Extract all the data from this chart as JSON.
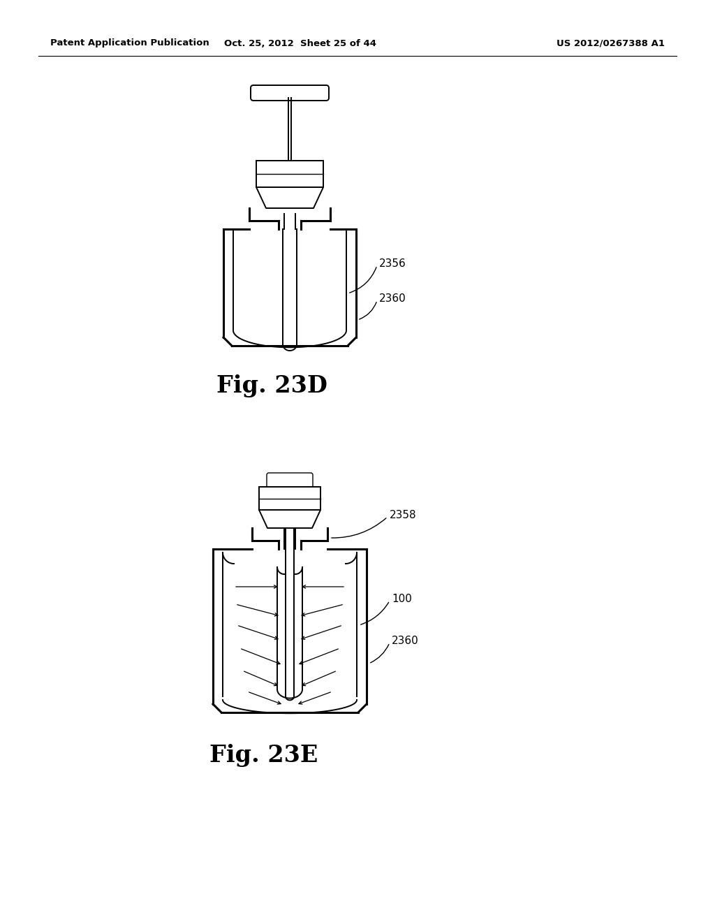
{
  "bg_color": "#ffffff",
  "header_left": "Patent Application Publication",
  "header_center": "Oct. 25, 2012  Sheet 25 of 44",
  "header_right": "US 2012/0267388 A1",
  "fig_label_23D": "Fig. 23D",
  "fig_label_23E": "Fig. 23E"
}
